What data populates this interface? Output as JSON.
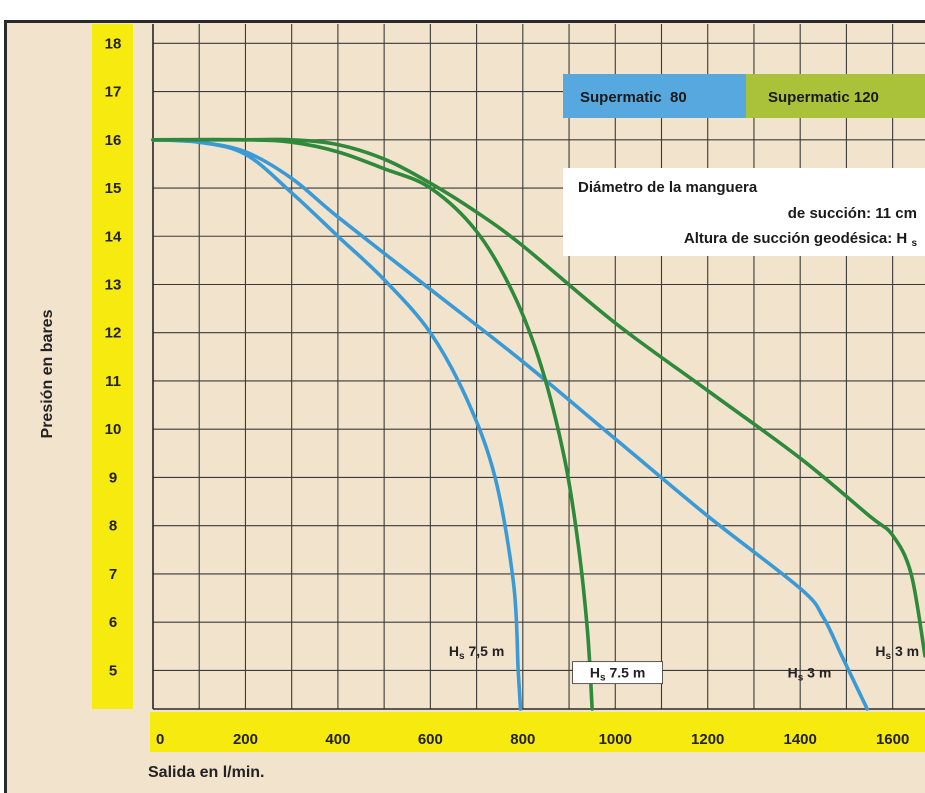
{
  "chart_data": {
    "type": "line",
    "xlabel": "Salida en l/min.",
    "ylabel": "Presión en bares",
    "xlim": [
      0,
      1670
    ],
    "ylim": [
      4.2,
      18.4
    ],
    "x_ticks": [
      "0",
      "200",
      "400",
      "600",
      "800",
      "1000",
      "1200",
      "1400",
      "1600"
    ],
    "y_ticks": [
      "18",
      "17",
      "16",
      "15",
      "14",
      "13",
      "12",
      "11",
      "10",
      "9",
      "8",
      "7",
      "6",
      "5"
    ],
    "grid": true,
    "legend": [
      {
        "label": "Supermatic  80",
        "color": "#58a8e0"
      },
      {
        "label": "Supermatic 120",
        "color": "#a9c23a"
      }
    ],
    "annotation": {
      "line1": "Diámetro de la manguera",
      "line2": "de succión: 11 cm",
      "line3": "Altura de succión geodésica: Hs"
    },
    "series": [
      {
        "name": "Supermatic 80 — Hs 7,5 m",
        "color": "#3a9ad6",
        "label": "Hs 7,5 m",
        "x": [
          0,
          100,
          200,
          300,
          400,
          500,
          600,
          680,
          740,
          780,
          790,
          795
        ],
        "y": [
          16,
          15.95,
          15.7,
          14.9,
          14.0,
          13.1,
          12.0,
          10.6,
          9.0,
          6.8,
          5.0,
          4.2
        ]
      },
      {
        "name": "Supermatic 80 — Hs 3 m",
        "color": "#3a9ad6",
        "label": "Hs 3 m",
        "x": [
          0,
          100,
          200,
          300,
          400,
          600,
          800,
          1000,
          1200,
          1400,
          1450,
          1490,
          1520,
          1545
        ],
        "y": [
          16,
          15.95,
          15.75,
          15.2,
          14.4,
          12.9,
          11.4,
          9.8,
          8.2,
          6.7,
          6.1,
          5.3,
          4.7,
          4.2
        ]
      },
      {
        "name": "Supermatic 120 — Hs 7.5 m",
        "color": "#2e8a3a",
        "label": "Hs 7.5 m",
        "x": [
          0,
          200,
          300,
          400,
          500,
          600,
          700,
          780,
          840,
          890,
          920,
          940,
          950
        ],
        "y": [
          16,
          16,
          15.95,
          15.75,
          15.4,
          15.0,
          14.1,
          12.8,
          11.3,
          9.4,
          7.6,
          5.8,
          4.2
        ]
      },
      {
        "name": "Supermatic 120 — Hs 3 m",
        "color": "#2e8a3a",
        "label": "Hs 3 m",
        "x": [
          0,
          200,
          300,
          400,
          500,
          600,
          700,
          800,
          1000,
          1200,
          1400,
          1550,
          1600,
          1640,
          1670
        ],
        "y": [
          16,
          16,
          16,
          15.9,
          15.6,
          15.1,
          14.5,
          13.8,
          12.2,
          10.8,
          9.4,
          8.2,
          7.8,
          7.0,
          5.3
        ]
      }
    ]
  }
}
